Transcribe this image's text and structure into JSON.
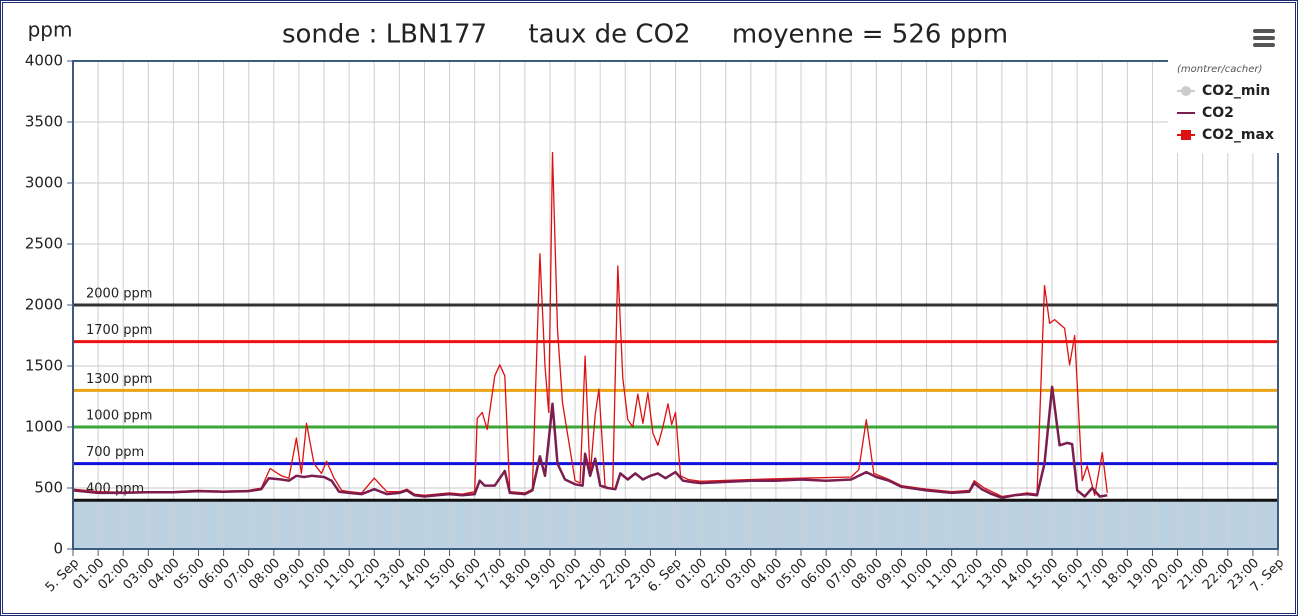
{
  "chart_data": {
    "type": "line",
    "title": "sonde : LBN177     taux de CO2     moyenne = 526 ppm",
    "y_label": "ppm",
    "legend_title": "(montrer/cacher)",
    "legend": "top-right",
    "grid": true,
    "xlim": [
      0,
      48
    ],
    "ylim": [
      0,
      4000
    ],
    "yticks": [
      0,
      500,
      1000,
      1500,
      2000,
      2500,
      3000,
      3500,
      4000
    ],
    "xticks": [
      {
        "value": 0,
        "label": "5. Sep"
      },
      {
        "value": 1,
        "label": "01:00"
      },
      {
        "value": 2,
        "label": "02:00"
      },
      {
        "value": 3,
        "label": "03:00"
      },
      {
        "value": 4,
        "label": "04:00"
      },
      {
        "value": 5,
        "label": "05:00"
      },
      {
        "value": 6,
        "label": "06:00"
      },
      {
        "value": 7,
        "label": "07:00"
      },
      {
        "value": 8,
        "label": "08:00"
      },
      {
        "value": 9,
        "label": "09:00"
      },
      {
        "value": 10,
        "label": "10:00"
      },
      {
        "value": 11,
        "label": "11:00"
      },
      {
        "value": 12,
        "label": "12:00"
      },
      {
        "value": 13,
        "label": "13:00"
      },
      {
        "value": 14,
        "label": "14:00"
      },
      {
        "value": 15,
        "label": "15:00"
      },
      {
        "value": 16,
        "label": "16:00"
      },
      {
        "value": 17,
        "label": "17:00"
      },
      {
        "value": 18,
        "label": "18:00"
      },
      {
        "value": 19,
        "label": "19:00"
      },
      {
        "value": 20,
        "label": "20:00"
      },
      {
        "value": 21,
        "label": "21:00"
      },
      {
        "value": 22,
        "label": "22:00"
      },
      {
        "value": 23,
        "label": "23:00"
      },
      {
        "value": 24,
        "label": "6. Sep"
      },
      {
        "value": 25,
        "label": "01:00"
      },
      {
        "value": 26,
        "label": "02:00"
      },
      {
        "value": 27,
        "label": "03:00"
      },
      {
        "value": 28,
        "label": "04:00"
      },
      {
        "value": 29,
        "label": "05:00"
      },
      {
        "value": 30,
        "label": "06:00"
      },
      {
        "value": 31,
        "label": "07:00"
      },
      {
        "value": 32,
        "label": "08:00"
      },
      {
        "value": 33,
        "label": "09:00"
      },
      {
        "value": 34,
        "label": "10:00"
      },
      {
        "value": 35,
        "label": "11:00"
      },
      {
        "value": 36,
        "label": "12:00"
      },
      {
        "value": 37,
        "label": "13:00"
      },
      {
        "value": 38,
        "label": "14:00"
      },
      {
        "value": 39,
        "label": "15:00"
      },
      {
        "value": 40,
        "label": "16:00"
      },
      {
        "value": 41,
        "label": "17:00"
      },
      {
        "value": 42,
        "label": "18:00"
      },
      {
        "value": 43,
        "label": "19:00"
      },
      {
        "value": 44,
        "label": "20:00"
      },
      {
        "value": 45,
        "label": "21:00"
      },
      {
        "value": 46,
        "label": "22:00"
      },
      {
        "value": 47,
        "label": "23:00"
      },
      {
        "value": 48,
        "label": "7. Sep"
      }
    ],
    "plot_band": {
      "from": 0,
      "to": 400,
      "color": "#bcd2e0"
    },
    "plot_lines": [
      {
        "value": 2000,
        "label": "2000 ppm",
        "color": "#333333"
      },
      {
        "value": 1700,
        "label": "1700 ppm",
        "color": "#ee1111"
      },
      {
        "value": 1300,
        "label": "1300 ppm",
        "color": "#e8a317"
      },
      {
        "value": 1000,
        "label": "1000 ppm",
        "color": "#3aa63a"
      },
      {
        "value": 700,
        "label": "700 ppm",
        "color": "#1010dd"
      },
      {
        "value": 400,
        "label": "400 ppm",
        "color": "#111111"
      }
    ],
    "series": [
      {
        "name": "CO2_min",
        "color": "#cccccc",
        "marker": "circle",
        "visible": false
      },
      {
        "name": "CO2_max",
        "color": "#dd1111",
        "marker": "square",
        "visible": true,
        "x": [
          0,
          1,
          2,
          3,
          4,
          5,
          6,
          7,
          7.5,
          7.85,
          8.3,
          8.6,
          8.9,
          9.1,
          9.3,
          9.6,
          9.9,
          10.1,
          10.4,
          10.7,
          11,
          11.5,
          12,
          12.5,
          13,
          13.3,
          13.6,
          14,
          15,
          15.5,
          16,
          16.1,
          16.3,
          16.5,
          16.8,
          17,
          17.2,
          17.4,
          18,
          18.3,
          18.6,
          18.8,
          18.95,
          19.1,
          19.3,
          19.5,
          20,
          20.2,
          20.4,
          20.6,
          20.8,
          20.95,
          21.2,
          21.5,
          21.7,
          21.9,
          22.1,
          22.3,
          22.5,
          22.7,
          22.9,
          23.1,
          23.3,
          23.5,
          23.7,
          23.85,
          24,
          24.2,
          24.5,
          25,
          27,
          29,
          31,
          31.3,
          31.6,
          31.9,
          32.5,
          33,
          34,
          35,
          35.7,
          35.9,
          36.3,
          37,
          38,
          38.4,
          38.7,
          38.9,
          39.1,
          39.5,
          39.7,
          39.9,
          40.2,
          40.4,
          40.7,
          41,
          41.2
        ],
        "values": [
          490,
          470,
          465,
          470,
          470,
          480,
          475,
          480,
          500,
          660,
          600,
          580,
          910,
          620,
          1030,
          700,
          620,
          720,
          580,
          480,
          470,
          460,
          580,
          470,
          470,
          490,
          450,
          440,
          460,
          450,
          470,
          1070,
          1120,
          980,
          1420,
          1510,
          1420,
          470,
          460,
          490,
          2420,
          1500,
          1120,
          3250,
          1800,
          1200,
          560,
          540,
          1580,
          600,
          1100,
          1310,
          500,
          500,
          2320,
          1400,
          1060,
          1000,
          1270,
          1030,
          1280,
          950,
          850,
          1000,
          1190,
          1020,
          1120,
          600,
          570,
          555,
          570,
          580,
          590,
          650,
          1060,
          620,
          570,
          520,
          490,
          470,
          480,
          560,
          500,
          430,
          460,
          450,
          2160,
          1850,
          1880,
          1810,
          1510,
          1750,
          560,
          680,
          440,
          790,
          460
        ]
      },
      {
        "name": "CO2",
        "color": "#7b1d4e",
        "marker": "line",
        "visible": true,
        "x": [
          0,
          1,
          2,
          3,
          4,
          5,
          6,
          7,
          7.5,
          7.8,
          8.3,
          8.6,
          8.9,
          9.2,
          9.5,
          10,
          10.3,
          10.6,
          11,
          11.5,
          12,
          12.5,
          13,
          13.3,
          13.6,
          14,
          14.5,
          15,
          15.5,
          16,
          16.2,
          16.4,
          16.8,
          17.2,
          17.4,
          18,
          18.3,
          18.6,
          18.8,
          19.1,
          19.3,
          19.6,
          20,
          20.3,
          20.4,
          20.6,
          20.8,
          21,
          21.3,
          21.6,
          21.8,
          22.1,
          22.4,
          22.7,
          23,
          23.3,
          23.6,
          24,
          24.3,
          24.6,
          25,
          26,
          27,
          28,
          29,
          30,
          31,
          31.6,
          32,
          32.5,
          33,
          34,
          35,
          35.7,
          35.9,
          36.2,
          36.6,
          37,
          37.5,
          38,
          38.4,
          38.7,
          39,
          39.3,
          39.6,
          39.8,
          40,
          40.3,
          40.6,
          40.9,
          41.2
        ],
        "values": [
          480,
          460,
          460,
          465,
          465,
          475,
          470,
          475,
          490,
          580,
          570,
          560,
          600,
          590,
          600,
          590,
          560,
          470,
          460,
          450,
          490,
          450,
          460,
          480,
          440,
          430,
          440,
          450,
          440,
          450,
          560,
          520,
          520,
          640,
          460,
          450,
          480,
          760,
          600,
          1190,
          700,
          570,
          530,
          520,
          780,
          600,
          740,
          520,
          500,
          490,
          620,
          570,
          620,
          570,
          600,
          620,
          580,
          630,
          560,
          550,
          540,
          550,
          560,
          560,
          570,
          560,
          570,
          630,
          590,
          560,
          510,
          480,
          460,
          470,
          540,
          490,
          450,
          420,
          440,
          450,
          440,
          700,
          1330,
          850,
          870,
          860,
          480,
          430,
          500,
          430,
          440
        ]
      }
    ]
  }
}
